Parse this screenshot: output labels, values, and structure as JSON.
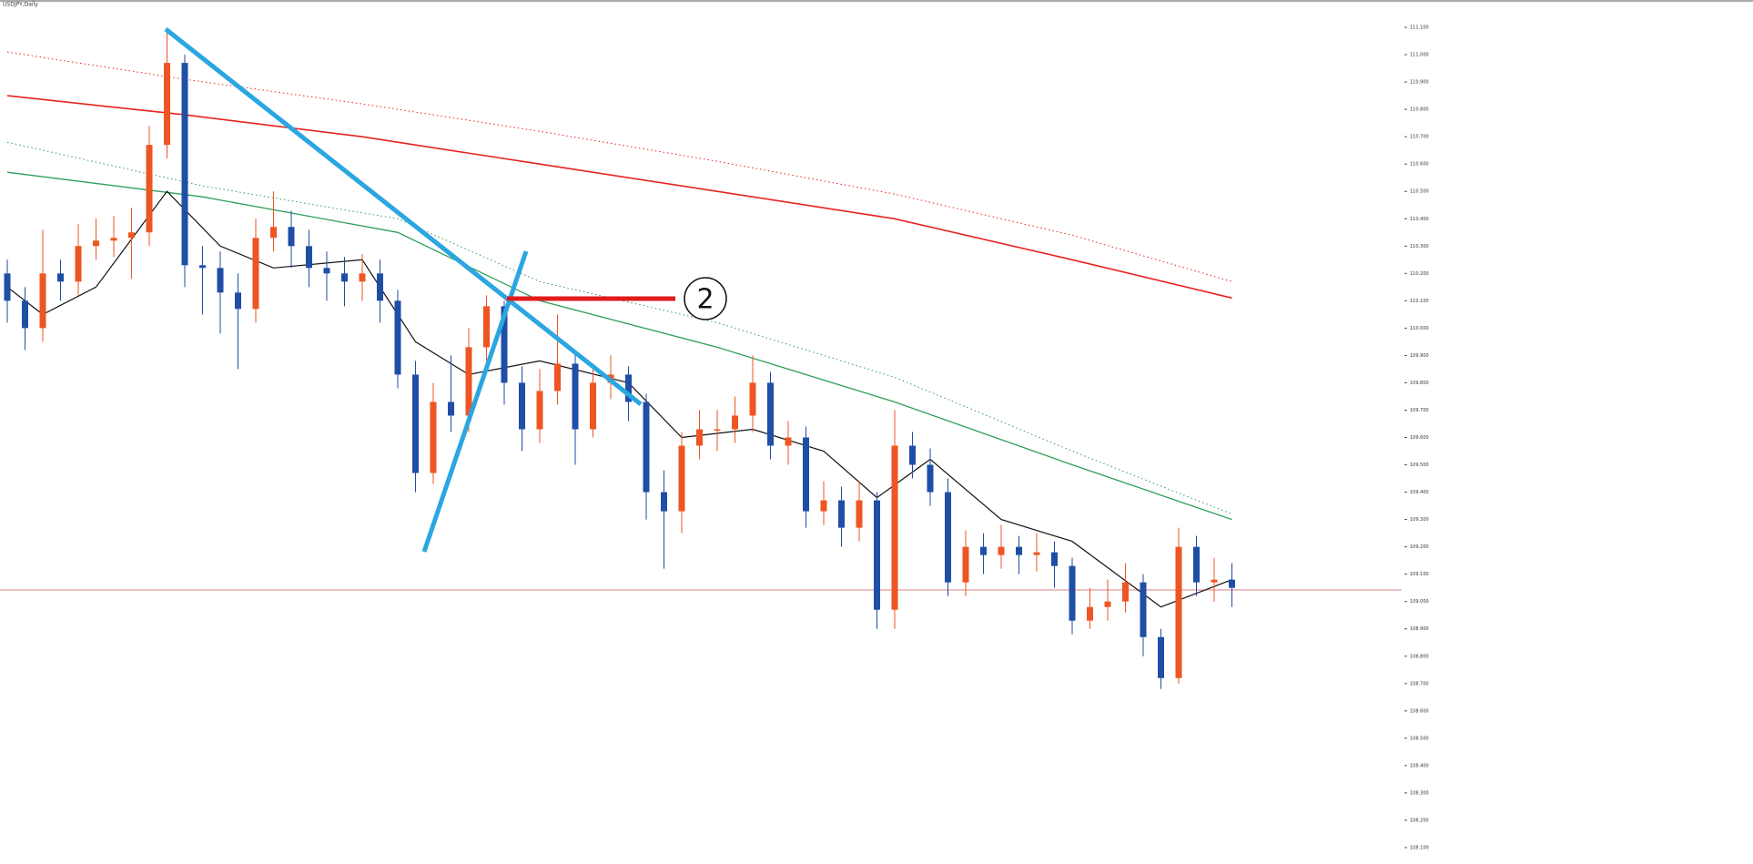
{
  "chart_data": {
    "type": "candlestick",
    "title": "USDJPY,Daily",
    "ylim": [
      108.04,
      111.2
    ],
    "yticks": [
      {
        "value": 108.1,
        "label": "108.100"
      },
      {
        "value": 108.2,
        "label": "108.200"
      },
      {
        "value": 108.3,
        "label": "108.300"
      },
      {
        "value": 108.4,
        "label": "108.400"
      },
      {
        "value": 108.5,
        "label": "108.500"
      },
      {
        "value": 108.6,
        "label": "108.600"
      },
      {
        "value": 108.7,
        "label": "108.700"
      },
      {
        "value": 108.8,
        "label": "108.800"
      },
      {
        "value": 108.9,
        "label": "108.900"
      },
      {
        "value": 109.0,
        "label": "109.000"
      },
      {
        "value": 109.1,
        "label": "109.100"
      },
      {
        "value": 109.2,
        "label": "109.200"
      },
      {
        "value": 109.3,
        "label": "109.300"
      },
      {
        "value": 109.4,
        "label": "109.400"
      },
      {
        "value": 109.5,
        "label": "109.500"
      },
      {
        "value": 109.6,
        "label": "109.600"
      },
      {
        "value": 109.7,
        "label": "109.700"
      },
      {
        "value": 109.8,
        "label": "109.800"
      },
      {
        "value": 109.9,
        "label": "109.900"
      },
      {
        "value": 110.0,
        "label": "110.000"
      },
      {
        "value": 110.1,
        "label": "110.100"
      },
      {
        "value": 110.2,
        "label": "110.200"
      },
      {
        "value": 110.3,
        "label": "110.300"
      },
      {
        "value": 110.4,
        "label": "110.400"
      },
      {
        "value": 110.5,
        "label": "110.500"
      },
      {
        "value": 110.6,
        "label": "110.600"
      },
      {
        "value": 110.7,
        "label": "110.700"
      },
      {
        "value": 110.8,
        "label": "110.800"
      },
      {
        "value": 110.9,
        "label": "110.900"
      },
      {
        "value": 111.0,
        "label": "111.000"
      },
      {
        "value": 111.1,
        "label": "111.100"
      }
    ],
    "up_color": "#ee5522",
    "down_color": "#1f4ea6",
    "open": [
      110.2,
      110.1,
      110.0,
      110.2,
      110.17,
      110.3,
      110.32,
      110.33,
      110.35,
      110.67,
      110.97,
      110.23,
      110.22,
      110.13,
      110.07,
      110.33,
      110.37,
      110.3,
      110.22,
      110.2,
      110.17,
      110.2,
      110.1,
      109.83,
      109.47,
      109.73,
      109.68,
      109.93,
      110.08,
      109.8,
      109.63,
      109.77,
      109.87,
      109.63,
      109.8,
      109.83,
      109.73,
      109.4,
      109.33,
      109.57,
      109.63,
      109.63,
      109.68,
      109.8,
      109.57,
      109.6,
      109.33,
      109.37,
      109.27,
      109.37,
      108.97,
      109.57,
      109.5,
      109.4,
      109.07,
      109.2,
      109.17,
      109.2,
      109.17,
      109.18,
      109.13,
      108.93,
      108.98,
      109.0,
      109.07,
      108.87,
      108.72,
      109.2,
      109.07,
      109.08
    ],
    "high": [
      110.25,
      110.15,
      110.36,
      110.25,
      110.38,
      110.4,
      110.41,
      110.44,
      110.74,
      111.08,
      111.0,
      110.3,
      110.28,
      110.2,
      110.4,
      110.5,
      110.43,
      110.36,
      110.28,
      110.26,
      110.27,
      110.25,
      110.14,
      109.88,
      109.8,
      109.9,
      110.0,
      110.12,
      110.1,
      109.86,
      109.85,
      110.05,
      109.92,
      109.86,
      109.9,
      109.86,
      109.76,
      109.48,
      109.62,
      109.7,
      109.7,
      109.75,
      109.9,
      109.84,
      109.66,
      109.64,
      109.44,
      109.42,
      109.44,
      109.4,
      109.7,
      109.62,
      109.56,
      109.45,
      109.26,
      109.25,
      109.28,
      109.24,
      109.25,
      109.22,
      109.16,
      109.05,
      109.08,
      109.14,
      109.1,
      108.9,
      109.27,
      109.24,
      109.16,
      109.14
    ],
    "low": [
      110.02,
      109.92,
      109.95,
      110.1,
      110.12,
      110.25,
      110.26,
      110.18,
      110.3,
      110.62,
      110.15,
      110.05,
      109.98,
      109.85,
      110.02,
      110.28,
      110.22,
      110.15,
      110.1,
      110.08,
      110.1,
      110.02,
      109.78,
      109.4,
      109.43,
      109.62,
      109.62,
      109.88,
      109.72,
      109.55,
      109.58,
      109.72,
      109.5,
      109.6,
      109.74,
      109.66,
      109.3,
      109.12,
      109.25,
      109.52,
      109.55,
      109.58,
      109.62,
      109.52,
      109.5,
      109.27,
      109.28,
      109.2,
      109.22,
      108.9,
      108.9,
      109.45,
      109.35,
      109.02,
      109.02,
      109.1,
      109.12,
      109.1,
      109.11,
      109.05,
      108.88,
      108.9,
      108.93,
      108.96,
      108.8,
      108.68,
      108.7,
      109.02,
      109.0,
      108.98
    ],
    "close": [
      110.1,
      110.0,
      110.2,
      110.17,
      110.3,
      110.32,
      110.33,
      110.35,
      110.67,
      110.97,
      110.23,
      110.22,
      110.13,
      110.07,
      110.33,
      110.37,
      110.3,
      110.22,
      110.2,
      110.17,
      110.2,
      110.1,
      109.83,
      109.47,
      109.73,
      109.68,
      109.93,
      110.08,
      109.8,
      109.63,
      109.77,
      109.87,
      109.63,
      109.8,
      109.83,
      109.73,
      109.4,
      109.33,
      109.57,
      109.63,
      109.63,
      109.68,
      109.8,
      109.57,
      109.6,
      109.33,
      109.37,
      109.27,
      109.37,
      108.97,
      109.57,
      109.5,
      109.4,
      109.07,
      109.2,
      109.17,
      109.2,
      109.17,
      109.18,
      109.13,
      108.93,
      108.98,
      109.0,
      109.07,
      108.87,
      108.72,
      109.2,
      109.07,
      109.08,
      109.05
    ],
    "lines": [
      {
        "color": "#e8231f",
        "dashed": false,
        "width": 1.6,
        "x": [
          0,
          10,
          20,
          30,
          40,
          50,
          60,
          69
        ],
        "values": [
          110.85,
          110.78,
          110.7,
          110.6,
          110.5,
          110.4,
          110.25,
          110.11
        ]
      },
      {
        "color": "#e8231f",
        "dashed": true,
        "width": 1,
        "x": [
          0,
          10,
          20,
          30,
          40,
          50,
          60,
          69
        ],
        "values": [
          111.01,
          110.91,
          110.82,
          110.72,
          110.61,
          110.49,
          110.34,
          110.17
        ]
      },
      {
        "color": "#2f9e5a",
        "dashed": false,
        "width": 1.3,
        "x": [
          0,
          11,
          22,
          30,
          40,
          50,
          60,
          69
        ],
        "values": [
          110.57,
          110.48,
          110.35,
          110.1,
          109.93,
          109.73,
          109.5,
          109.3
        ]
      },
      {
        "color": "#2f9e5a",
        "dashed": true,
        "width": 1,
        "x": [
          0,
          11,
          22,
          30,
          40,
          50,
          60,
          69
        ],
        "values": [
          110.68,
          110.52,
          110.4,
          110.17,
          110.02,
          109.82,
          109.55,
          109.32
        ]
      },
      {
        "color": "#111111",
        "dashed": false,
        "width": 1.2,
        "x": [
          0,
          2,
          5,
          9,
          12,
          15,
          20,
          23,
          26,
          30,
          35,
          38,
          42,
          46,
          49,
          52,
          56,
          60,
          65,
          69
        ],
        "values": [
          110.15,
          110.05,
          110.15,
          110.5,
          110.3,
          110.22,
          110.25,
          109.95,
          109.83,
          109.88,
          109.8,
          109.6,
          109.63,
          109.55,
          109.38,
          109.52,
          109.3,
          109.22,
          108.98,
          109.08
        ]
      }
    ],
    "annotation": "2"
  }
}
